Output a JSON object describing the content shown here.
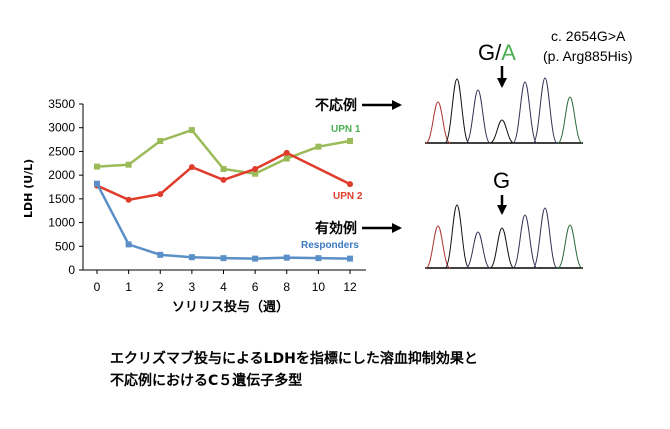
{
  "chart_data": {
    "type": "line",
    "ylabel": "LDH (U/L)",
    "xlabel": "ソリリス投与（週）",
    "categories": [
      "0",
      "1",
      "2",
      "3",
      "4",
      "6",
      "8",
      "10",
      "12"
    ],
    "ylim": [
      0,
      3500
    ],
    "yticks": [
      "0",
      "500",
      "1000",
      "1500",
      "2000",
      "2500",
      "3000",
      "3500"
    ],
    "grid": false,
    "series": [
      {
        "name": "UPN 1",
        "color": "#9bbb59",
        "label_color": "#4caf50",
        "values": [
          2180,
          2220,
          2720,
          2950,
          2130,
          2030,
          2350,
          2600,
          2720
        ]
      },
      {
        "name": "UPN 2",
        "color": "#e03c2c",
        "label_color": "#e03c2c",
        "values": [
          1780,
          1480,
          1600,
          2170,
          1900,
          2130,
          2470,
          null,
          1810
        ]
      },
      {
        "name": "Responders",
        "color": "#5b8fc7",
        "label_color": "#3a78c0",
        "values": [
          1820,
          540,
          320,
          270,
          250,
          240,
          260,
          250,
          240
        ]
      }
    ]
  },
  "labels": {
    "nonresponder": "不応例",
    "responder": "有効例",
    "mutation": "c. 2654G>A",
    "protein": "(p. Arg885His)",
    "het_g": "G/",
    "het_a": "A",
    "hom_g": "G"
  },
  "colors": {
    "allele_a": "#4caf50"
  },
  "caption": {
    "line1": "エクリズマブ投与によるLDHを指標にした溶血抑制効果と",
    "line2": "不応例におけるC５遺伝子多型"
  }
}
